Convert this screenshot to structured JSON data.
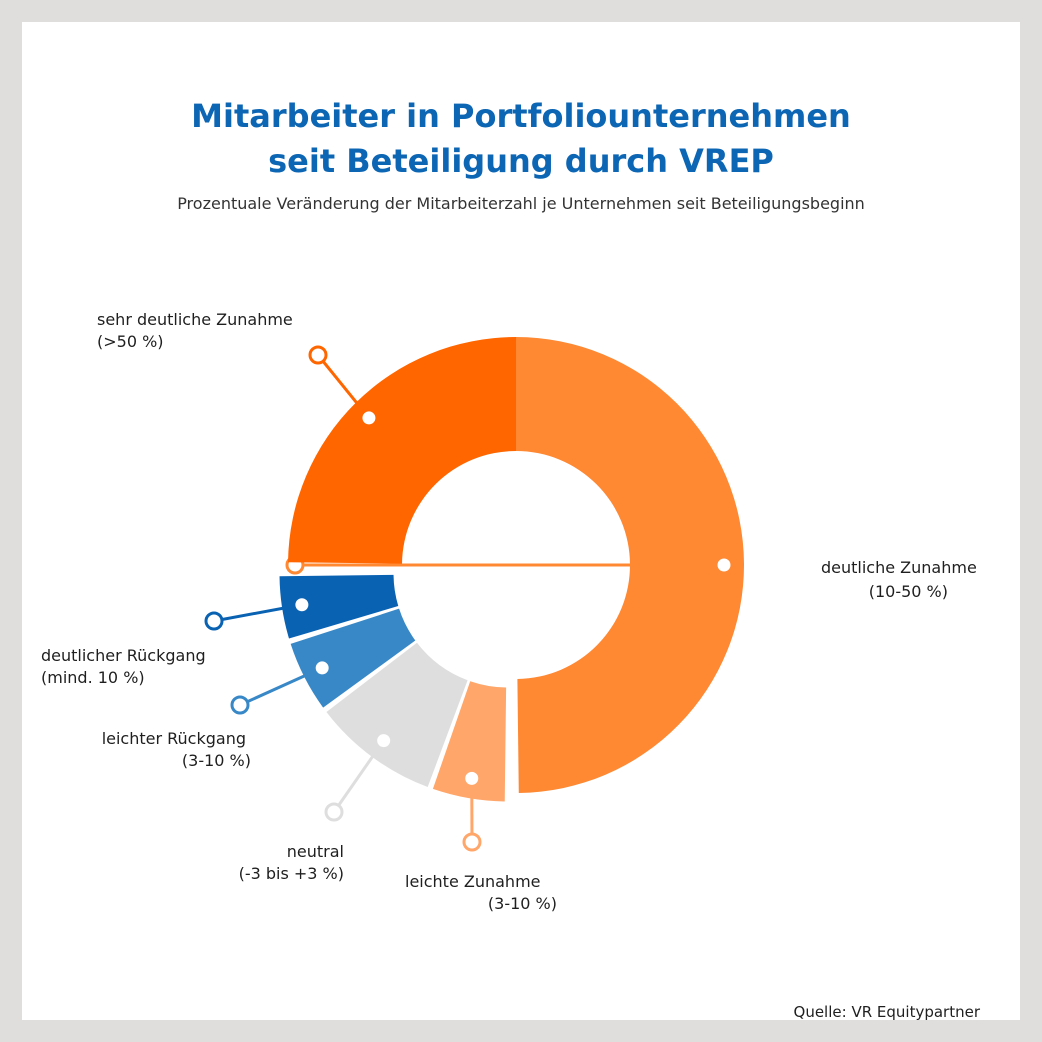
{
  "header": {
    "title_line1": "Mitarbeiter in Portfoliounternehmen",
    "title_line2": "seit Beteiligung durch VREP",
    "subtitle": "Prozentuale Veränderung der Mitarbeiterzahl je Unternehmen seit Beteiligungsbeginn"
  },
  "footer": {
    "source": "Quelle: VR Equitypartner"
  },
  "chart_data": {
    "type": "pie",
    "variant": "donut",
    "title": "Mitarbeiter in Portfoliounternehmen seit Beteiligung durch VREP",
    "subtitle": "Prozentuale Veränderung der Mitarbeiterzahl je Unternehmen seit Beteiligungsbeginn",
    "legend": "none",
    "slices": [
      {
        "key": "deutliche",
        "label": [
          "deutliche Zunahme",
          "(10-50 %)"
        ],
        "share": 50.0,
        "color": "#ff8833"
      },
      {
        "key": "leichte",
        "label": [
          "leichte Zunahme",
          "(3-10 %)"
        ],
        "share": 5.5,
        "color": "#ffa66a"
      },
      {
        "key": "neutral",
        "label": [
          "neutral",
          "(-3 bis +3 %)"
        ],
        "share": 9.3,
        "color": "#dedede"
      },
      {
        "key": "leichter-rueckgang",
        "label": [
          "leichter Rückgang",
          "(3-10 %)"
        ],
        "share": 5.4,
        "color": "#3888c8"
      },
      {
        "key": "deutlicher-rueckgang",
        "label": [
          "deutlicher Rückgang",
          "(mind. 10 %)"
        ],
        "share": 4.8,
        "color": "#0a62b3"
      },
      {
        "key": "sehr-deutliche",
        "label": [
          "sehr deutliche Zunahme",
          "(>50 %)"
        ],
        "share": 25.0,
        "color": "#ff6600"
      }
    ]
  }
}
